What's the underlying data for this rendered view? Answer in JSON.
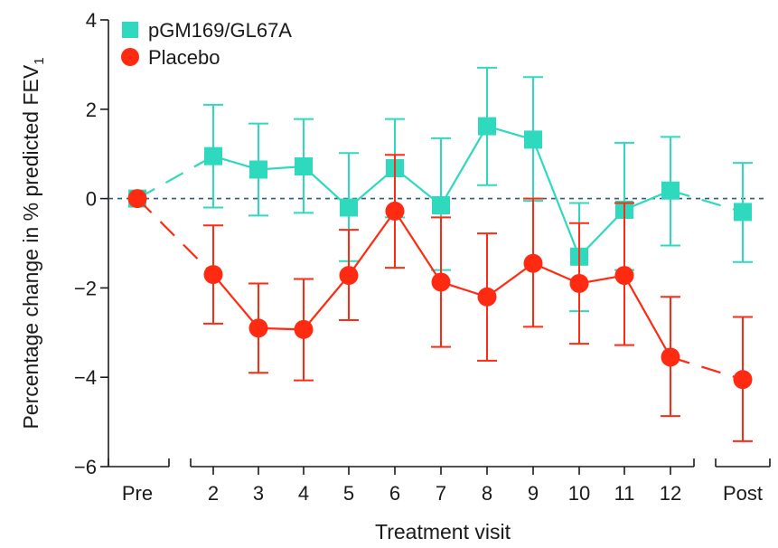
{
  "chart_data": {
    "type": "line",
    "categories": [
      "Pre",
      "2",
      "3",
      "4",
      "5",
      "6",
      "7",
      "8",
      "9",
      "10",
      "11",
      "12",
      "Post"
    ],
    "xlabel": "Treatment visit",
    "ylabel": "Percentage change in % predicted FEV",
    "ylabel_subscript": "1",
    "ylim": [
      -6,
      4
    ],
    "yticks": [
      4,
      2,
      0,
      -2,
      -4,
      -6
    ],
    "ytick_labels": [
      "4",
      "2",
      "0",
      "−2",
      "−4",
      "−6"
    ],
    "reference_line": 0,
    "legend_position": "top-left",
    "series": [
      {
        "name": "pGM169/GL67A",
        "marker": "square",
        "color": "#2fd9bd",
        "values": [
          0,
          0.95,
          0.65,
          0.72,
          -0.2,
          0.68,
          -0.15,
          1.62,
          1.32,
          -1.3,
          -0.25,
          0.18,
          -0.3
        ],
        "err_high": [
          null,
          2.1,
          1.68,
          1.78,
          1.02,
          1.78,
          1.35,
          2.93,
          2.72,
          -0.1,
          1.25,
          1.38,
          0.8
        ],
        "err_low": [
          null,
          -0.2,
          -0.38,
          -0.32,
          -1.4,
          -0.42,
          -1.6,
          0.3,
          -0.05,
          -2.52,
          -1.6,
          -1.05,
          -1.42
        ]
      },
      {
        "name": "Placebo",
        "marker": "circle",
        "color": "#ff2a12",
        "values": [
          0,
          -1.7,
          -2.9,
          -2.93,
          -1.72,
          -0.28,
          -1.87,
          -2.2,
          -1.45,
          -1.9,
          -1.72,
          -3.55,
          -4.05
        ],
        "err_high": [
          null,
          -0.6,
          -1.9,
          -1.8,
          -0.7,
          0.98,
          -0.42,
          -0.78,
          0.0,
          -0.55,
          -0.1,
          -2.2,
          -2.65
        ],
        "err_low": [
          null,
          -2.8,
          -3.9,
          -4.07,
          -2.72,
          -1.55,
          -3.32,
          -3.63,
          -2.87,
          -3.25,
          -3.28,
          -4.87,
          -5.43
        ]
      }
    ]
  }
}
